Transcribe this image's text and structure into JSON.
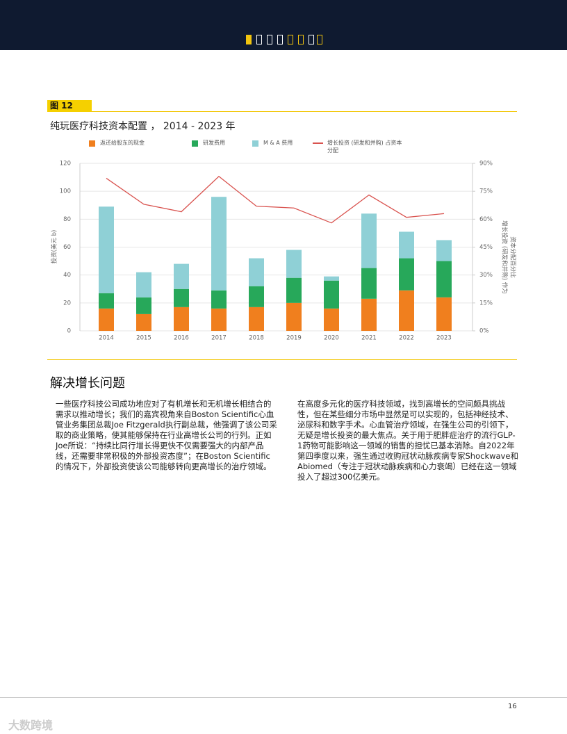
{
  "figure_label": "图 12",
  "chart_data": {
    "type": "bar",
    "stacked": true,
    "title": "纯玩医疗科技资本配置 ， 2014 - 2023 年",
    "categories": [
      "2014",
      "2015",
      "2016",
      "2017",
      "2018",
      "2019",
      "2020",
      "2021",
      "2022",
      "2023"
    ],
    "series": [
      {
        "name": "返还给股东的现金",
        "color": "#f07f1e",
        "values": [
          16,
          12,
          17,
          16,
          17,
          20,
          16,
          23,
          29,
          24
        ]
      },
      {
        "name": "研发费用",
        "color": "#27a85a",
        "values": [
          11,
          12,
          13,
          13,
          15,
          18,
          20,
          22,
          23,
          26
        ]
      },
      {
        "name": "M & A 费用",
        "color": "#8fd0d6",
        "values": [
          62,
          18,
          18,
          67,
          20,
          20,
          3,
          39,
          19,
          15
        ]
      },
      {
        "name": "增长投资 (研发和并购) 占资本分配",
        "color": "#d9534f",
        "type": "line",
        "axis": "y2",
        "values": [
          82,
          68,
          64,
          83,
          67,
          66,
          58,
          73,
          61,
          63
        ]
      }
    ],
    "ylabel": "投资(美元 b)",
    "y2label": [
      "增长投资 (研发和并购) 作为",
      "资本分配百分比"
    ],
    "ylim": [
      0,
      120
    ],
    "yticks": [
      0,
      20,
      40,
      60,
      80,
      100,
      120
    ],
    "y2lim": [
      0,
      90
    ],
    "y2ticks": [
      {
        "value": 0,
        "label": "0%"
      },
      {
        "value": 15,
        "label": "15%"
      },
      {
        "value": 30,
        "label": "30%"
      },
      {
        "value": 45,
        "label": "45%"
      },
      {
        "value": 60,
        "label": "60%"
      },
      {
        "value": 75,
        "label": "75%"
      },
      {
        "value": 90,
        "label": "90%"
      }
    ],
    "grid": true
  },
  "section_title": "解决增长问题",
  "paragraphs": [
    "一些医疗科技公司成功地应对了有机增长和无机增长相结合的需求以推动增长；我们的嘉宾视角来自Boston Scientific心血管业务集团总裁Joe Fitzgerald执行副总裁，他强调了该公司采取的商业策略，使其能够保持在行业高增长公司的行列。正如Joe所说：“持续比同行增长得更快不仅需要强大的内部产品线，还需要非常积极的外部投资态度”；在Boston Scientific的情况下，外部投资使该公司能够转向更高增长的治疗领域。",
    "在高度多元化的医疗科技领域，找到高增长的空间颇具挑战性，但在某些细分市场中显然是可以实现的，包括神经技术、泌尿科和数字手术。心血管治疗领域，在强生公司的引领下，无疑是增长投资的最大焦点。关于用于肥胖症治疗的流行GLP-1药物可能影响这一领域的销售的担忧已基本消除。自2022年第四季度以来，强生通过收购冠状动脉疾病专家Shockwave和Abiomed（专注于冠状动脉疾病和心力衰竭）已经在这一领域投入了超过300亿美元。"
  ],
  "page_number": "16",
  "watermark": "大数跨境"
}
